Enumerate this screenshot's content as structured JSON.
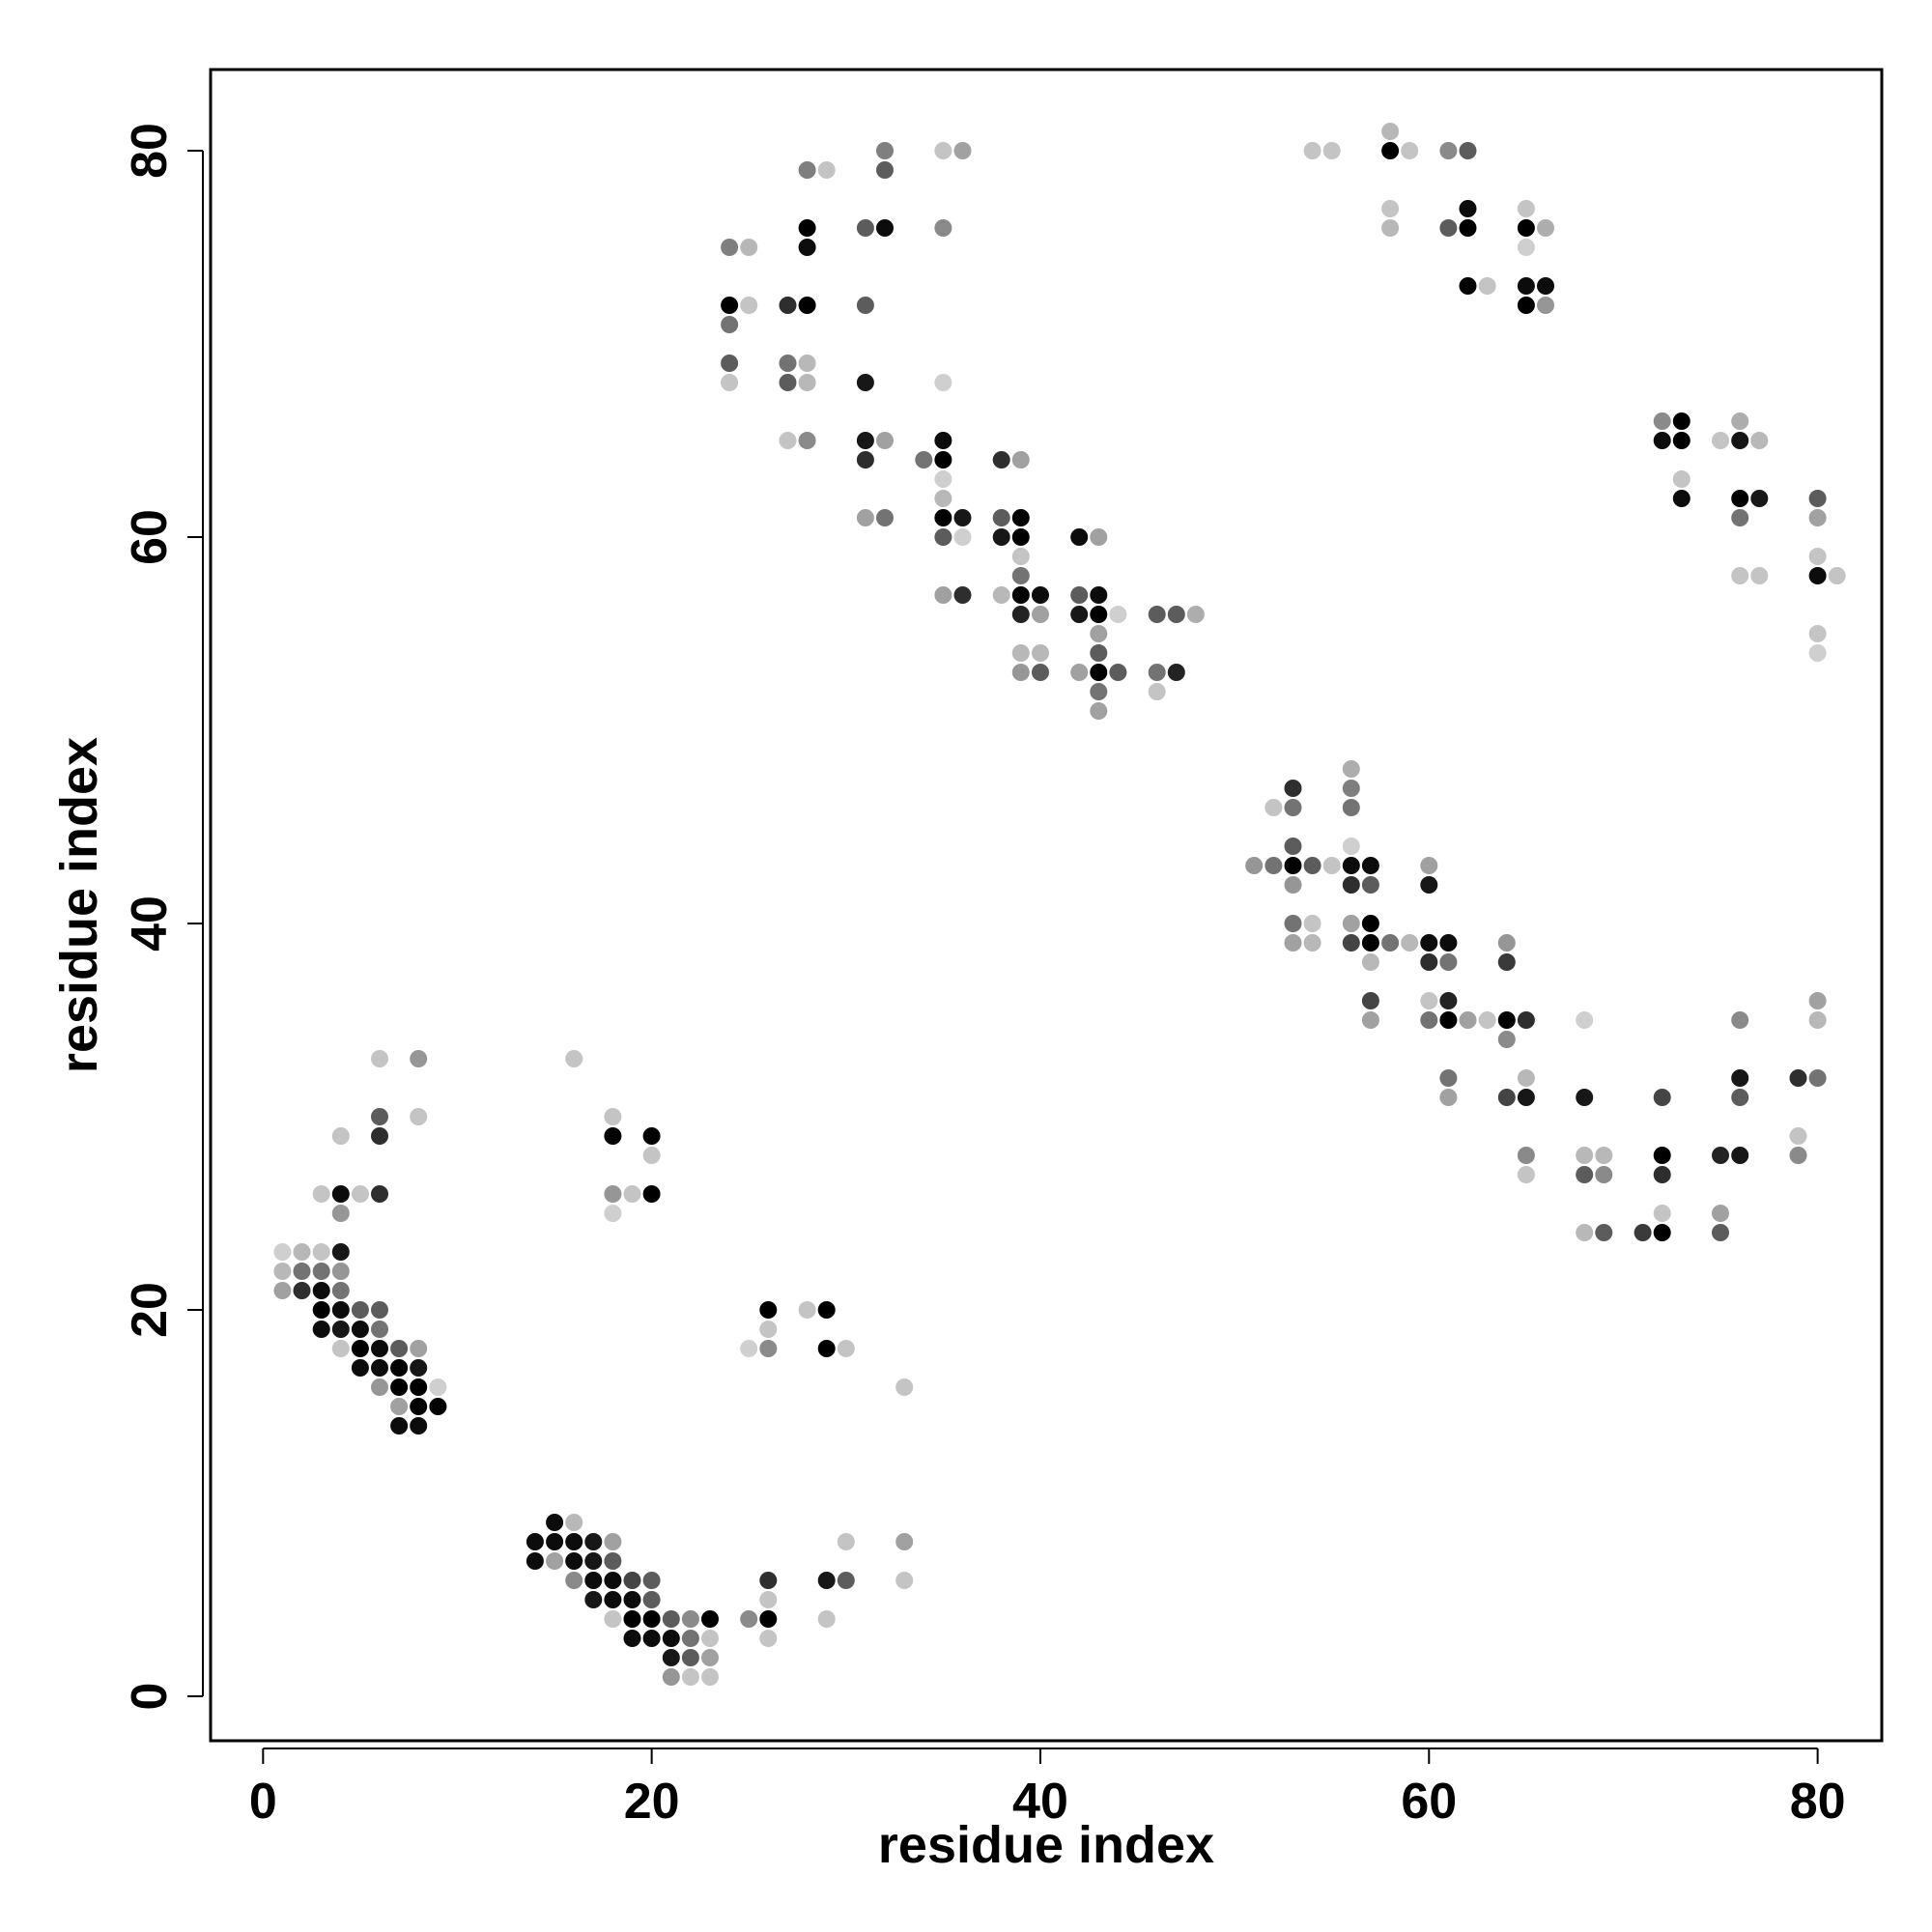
{
  "chart_data": {
    "type": "scatter",
    "title": "",
    "xlabel": "residue index",
    "ylabel": "residue index",
    "xlim": [
      -2.7,
      83.3
    ],
    "ylim": [
      -2.3,
      84.2
    ],
    "x_ticks": [
      0,
      20,
      40,
      60,
      80
    ],
    "y_ticks": [
      0,
      20,
      40,
      60,
      80
    ],
    "grid": false,
    "legend": "none",
    "point_color_scale": "grayscale: 0 = light gray, 1 = black",
    "points": [
      [
        1,
        23,
        0.1
      ],
      [
        2,
        23,
        0.2
      ],
      [
        3,
        23,
        0.15
      ],
      [
        1,
        22,
        0.2
      ],
      [
        2,
        22,
        0.5
      ],
      [
        3,
        22,
        0.5
      ],
      [
        4,
        22,
        0.35
      ],
      [
        1,
        21,
        0.3
      ],
      [
        2,
        21,
        0.8
      ],
      [
        3,
        21,
        0.95
      ],
      [
        4,
        21,
        0.5
      ],
      [
        4,
        23,
        0.9
      ],
      [
        3,
        20,
        1.0
      ],
      [
        4,
        20,
        0.95
      ],
      [
        5,
        20,
        0.6
      ],
      [
        6,
        20,
        0.6
      ],
      [
        3,
        19,
        0.95
      ],
      [
        4,
        19,
        0.9
      ],
      [
        5,
        19,
        0.95
      ],
      [
        6,
        19,
        0.5
      ],
      [
        4,
        18,
        0.15
      ],
      [
        5,
        18,
        1.0
      ],
      [
        6,
        18,
        0.95
      ],
      [
        7,
        18,
        0.6
      ],
      [
        8,
        18,
        0.3
      ],
      [
        5,
        17,
        0.95
      ],
      [
        6,
        17,
        0.95
      ],
      [
        7,
        17,
        1.0
      ],
      [
        8,
        17,
        0.9
      ],
      [
        6,
        16,
        0.35
      ],
      [
        7,
        16,
        1.0
      ],
      [
        8,
        16,
        1.0
      ],
      [
        9,
        16,
        0.1
      ],
      [
        7,
        15,
        0.3
      ],
      [
        8,
        15,
        1.0
      ],
      [
        9,
        15,
        1.0
      ],
      [
        7,
        14,
        0.95
      ],
      [
        8,
        14,
        0.95
      ],
      [
        3,
        26,
        0.15
      ],
      [
        4,
        26,
        0.95
      ],
      [
        5,
        26,
        0.15
      ],
      [
        4,
        25,
        0.35
      ],
      [
        6,
        26,
        0.8
      ],
      [
        4,
        29,
        0.15
      ],
      [
        6,
        30,
        0.6
      ],
      [
        6,
        29,
        0.8
      ],
      [
        6,
        33,
        0.15
      ],
      [
        8,
        33,
        0.35
      ],
      [
        8,
        30,
        0.15
      ],
      [
        16,
        33,
        0.15
      ],
      [
        18,
        30,
        0.15
      ],
      [
        18,
        29,
        1.0
      ],
      [
        20,
        29,
        1.0
      ],
      [
        20,
        28,
        0.15
      ],
      [
        18,
        26,
        0.35
      ],
      [
        19,
        26,
        0.15
      ],
      [
        20,
        26,
        1.0
      ],
      [
        18,
        25,
        0.1
      ],
      [
        26,
        20,
        1.0
      ],
      [
        26,
        19,
        0.15
      ],
      [
        25,
        18,
        0.1
      ],
      [
        26,
        18,
        0.4
      ],
      [
        28,
        20,
        0.15
      ],
      [
        29,
        20,
        1.0
      ],
      [
        29,
        18,
        1.0
      ],
      [
        30,
        18,
        0.15
      ],
      [
        33,
        16,
        0.15
      ],
      [
        14,
        8,
        0.95
      ],
      [
        15,
        8,
        0.95
      ],
      [
        16,
        8,
        0.95
      ],
      [
        17,
        8,
        0.9
      ],
      [
        18,
        8,
        0.3
      ],
      [
        15,
        9,
        0.95
      ],
      [
        16,
        9,
        0.2
      ],
      [
        14,
        7,
        0.95
      ],
      [
        15,
        7,
        0.3
      ],
      [
        16,
        7,
        0.95
      ],
      [
        17,
        7,
        0.9
      ],
      [
        18,
        7,
        0.6
      ],
      [
        16,
        6,
        0.4
      ],
      [
        17,
        6,
        0.95
      ],
      [
        18,
        6,
        0.95
      ],
      [
        19,
        6,
        0.7
      ],
      [
        20,
        6,
        0.6
      ],
      [
        17,
        5,
        0.9
      ],
      [
        18,
        5,
        0.95
      ],
      [
        19,
        5,
        0.95
      ],
      [
        20,
        5,
        0.6
      ],
      [
        18,
        4,
        0.15
      ],
      [
        19,
        4,
        1.0
      ],
      [
        20,
        4,
        1.0
      ],
      [
        21,
        4,
        0.6
      ],
      [
        22,
        4,
        0.4
      ],
      [
        23,
        4,
        1.0
      ],
      [
        19,
        3,
        0.95
      ],
      [
        20,
        3,
        0.95
      ],
      [
        21,
        3,
        0.95
      ],
      [
        22,
        3,
        0.5
      ],
      [
        23,
        3,
        0.15
      ],
      [
        21,
        2,
        0.9
      ],
      [
        22,
        2,
        0.6
      ],
      [
        23,
        2,
        0.3
      ],
      [
        21,
        1,
        0.35
      ],
      [
        22,
        1,
        0.15
      ],
      [
        23,
        1,
        0.15
      ],
      [
        25,
        4,
        0.4
      ],
      [
        26,
        4,
        1.0
      ],
      [
        26,
        5,
        0.15
      ],
      [
        26,
        6,
        0.8
      ],
      [
        26,
        3,
        0.15
      ],
      [
        29,
        4,
        0.15
      ],
      [
        29,
        6,
        0.9
      ],
      [
        30,
        6,
        0.6
      ],
      [
        30,
        8,
        0.15
      ],
      [
        33,
        8,
        0.3
      ],
      [
        33,
        6,
        0.15
      ],
      [
        24,
        75,
        0.45
      ],
      [
        25,
        75,
        0.2
      ],
      [
        24,
        72,
        1.0
      ],
      [
        25,
        72,
        0.15
      ],
      [
        24,
        71,
        0.5
      ],
      [
        24,
        69,
        0.6
      ],
      [
        24,
        68,
        0.15
      ],
      [
        28,
        79,
        0.45
      ],
      [
        29,
        79,
        0.15
      ],
      [
        28,
        76,
        1.0
      ],
      [
        28,
        75,
        0.95
      ],
      [
        27,
        72,
        0.8
      ],
      [
        28,
        72,
        1.0
      ],
      [
        27,
        69,
        0.5
      ],
      [
        28,
        69,
        0.2
      ],
      [
        27,
        68,
        0.6
      ],
      [
        28,
        68,
        0.2
      ],
      [
        27,
        65,
        0.15
      ],
      [
        28,
        65,
        0.4
      ],
      [
        32,
        80,
        0.45
      ],
      [
        32,
        79,
        0.6
      ],
      [
        31,
        76,
        0.6
      ],
      [
        32,
        76,
        0.95
      ],
      [
        31,
        72,
        0.6
      ],
      [
        31,
        68,
        0.9
      ],
      [
        31,
        65,
        0.9
      ],
      [
        32,
        65,
        0.3
      ],
      [
        31,
        64,
        0.8
      ],
      [
        31,
        61,
        0.3
      ],
      [
        32,
        61,
        0.5
      ],
      [
        35,
        80,
        0.15
      ],
      [
        36,
        80,
        0.3
      ],
      [
        35,
        76,
        0.4
      ],
      [
        35,
        68,
        0.1
      ],
      [
        34,
        64,
        0.5
      ],
      [
        35,
        65,
        0.95
      ],
      [
        35,
        64,
        1.0
      ],
      [
        35,
        63,
        0.1
      ],
      [
        35,
        62,
        0.2
      ],
      [
        35,
        61,
        1.0
      ],
      [
        36,
        61,
        0.9
      ],
      [
        35,
        60,
        0.6
      ],
      [
        36,
        60,
        0.1
      ],
      [
        35,
        57,
        0.3
      ],
      [
        36,
        57,
        0.8
      ],
      [
        38,
        64,
        0.8
      ],
      [
        39,
        64,
        0.3
      ],
      [
        38,
        61,
        0.6
      ],
      [
        39,
        61,
        1.0
      ],
      [
        38,
        60,
        0.9
      ],
      [
        39,
        60,
        1.0
      ],
      [
        39,
        59,
        0.15
      ],
      [
        39,
        58,
        0.5
      ],
      [
        38,
        57,
        0.2
      ],
      [
        39,
        57,
        1.0
      ],
      [
        40,
        57,
        0.95
      ],
      [
        39,
        56,
        0.85
      ],
      [
        40,
        56,
        0.3
      ],
      [
        39,
        54,
        0.2
      ],
      [
        40,
        54,
        0.2
      ],
      [
        39,
        53,
        0.35
      ],
      [
        40,
        53,
        0.6
      ],
      [
        42,
        60,
        0.95
      ],
      [
        43,
        60,
        0.3
      ],
      [
        42,
        57,
        0.6
      ],
      [
        43,
        57,
        0.95
      ],
      [
        42,
        56,
        0.9
      ],
      [
        43,
        56,
        1.0
      ],
      [
        44,
        56,
        0.1
      ],
      [
        43,
        55,
        0.3
      ],
      [
        43,
        54,
        0.6
      ],
      [
        42,
        53,
        0.3
      ],
      [
        43,
        53,
        1.0
      ],
      [
        44,
        53,
        0.6
      ],
      [
        43,
        52,
        0.5
      ],
      [
        43,
        51,
        0.3
      ],
      [
        46,
        56,
        0.6
      ],
      [
        47,
        56,
        0.6
      ],
      [
        48,
        56,
        0.25
      ],
      [
        46,
        53,
        0.5
      ],
      [
        47,
        53,
        0.85
      ],
      [
        46,
        52,
        0.15
      ],
      [
        51,
        43,
        0.35
      ],
      [
        52,
        43,
        0.5
      ],
      [
        53,
        43,
        1.0
      ],
      [
        54,
        43,
        0.6
      ],
      [
        55,
        43,
        0.15
      ],
      [
        53,
        44,
        0.6
      ],
      [
        52,
        46,
        0.15
      ],
      [
        53,
        46,
        0.5
      ],
      [
        53,
        47,
        0.8
      ],
      [
        53,
        42,
        0.35
      ],
      [
        53,
        40,
        0.5
      ],
      [
        54,
        40,
        0.15
      ],
      [
        53,
        39,
        0.3
      ],
      [
        54,
        39,
        0.2
      ],
      [
        56,
        48,
        0.25
      ],
      [
        56,
        47,
        0.45
      ],
      [
        56,
        46,
        0.5
      ],
      [
        56,
        44,
        0.1
      ],
      [
        56,
        43,
        0.95
      ],
      [
        57,
        43,
        0.95
      ],
      [
        56,
        42,
        0.8
      ],
      [
        57,
        42,
        0.6
      ],
      [
        56,
        40,
        0.3
      ],
      [
        57,
        40,
        1.0
      ],
      [
        56,
        39,
        0.7
      ],
      [
        57,
        39,
        1.0
      ],
      [
        58,
        39,
        0.5
      ],
      [
        59,
        39,
        0.2
      ],
      [
        57,
        38,
        0.2
      ],
      [
        57,
        36,
        0.7
      ],
      [
        57,
        35,
        0.3
      ],
      [
        60,
        43,
        0.3
      ],
      [
        60,
        42,
        0.9
      ],
      [
        60,
        39,
        0.95
      ],
      [
        61,
        39,
        0.95
      ],
      [
        60,
        38,
        0.8
      ],
      [
        61,
        38,
        0.5
      ],
      [
        60,
        36,
        0.15
      ],
      [
        61,
        36,
        0.85
      ],
      [
        60,
        35,
        0.5
      ],
      [
        61,
        35,
        1.0
      ],
      [
        62,
        35,
        0.3
      ],
      [
        63,
        35,
        0.15
      ],
      [
        61,
        32,
        0.5
      ],
      [
        61,
        31,
        0.3
      ],
      [
        64,
        39,
        0.35
      ],
      [
        64,
        38,
        0.75
      ],
      [
        64,
        35,
        1.0
      ],
      [
        65,
        35,
        0.8
      ],
      [
        64,
        34,
        0.4
      ],
      [
        64,
        31,
        0.7
      ],
      [
        65,
        31,
        0.9
      ],
      [
        65,
        32,
        0.2
      ],
      [
        65,
        28,
        0.4
      ],
      [
        65,
        27,
        0.15
      ],
      [
        68,
        35,
        0.1
      ],
      [
        68,
        31,
        0.9
      ],
      [
        68,
        28,
        0.2
      ],
      [
        69,
        28,
        0.2
      ],
      [
        68,
        27,
        0.6
      ],
      [
        69,
        27,
        0.4
      ],
      [
        68,
        24,
        0.2
      ],
      [
        69,
        24,
        0.6
      ],
      [
        72,
        31,
        0.7
      ],
      [
        72,
        28,
        1.0
      ],
      [
        72,
        27,
        0.8
      ],
      [
        72,
        25,
        0.15
      ],
      [
        71,
        24,
        0.75
      ],
      [
        72,
        24,
        1.0
      ],
      [
        75,
        28,
        0.85
      ],
      [
        76,
        28,
        0.9
      ],
      [
        75,
        25,
        0.3
      ],
      [
        75,
        24,
        0.6
      ],
      [
        76,
        35,
        0.4
      ],
      [
        76,
        32,
        0.9
      ],
      [
        76,
        31,
        0.6
      ],
      [
        79,
        32,
        0.8
      ],
      [
        80,
        32,
        0.5
      ],
      [
        80,
        36,
        0.3
      ],
      [
        80,
        35,
        0.2
      ],
      [
        79,
        29,
        0.15
      ],
      [
        79,
        28,
        0.4
      ],
      [
        54,
        80,
        0.15
      ],
      [
        55,
        80,
        0.15
      ],
      [
        58,
        81,
        0.2
      ],
      [
        58,
        80,
        1.0
      ],
      [
        59,
        80,
        0.15
      ],
      [
        58,
        77,
        0.15
      ],
      [
        58,
        76,
        0.2
      ],
      [
        61,
        80,
        0.4
      ],
      [
        62,
        80,
        0.6
      ],
      [
        62,
        77,
        0.95
      ],
      [
        61,
        76,
        0.6
      ],
      [
        62,
        76,
        1.0
      ],
      [
        62,
        73,
        1.0
      ],
      [
        63,
        73,
        0.15
      ],
      [
        65,
        77,
        0.15
      ],
      [
        65,
        76,
        1.0
      ],
      [
        66,
        76,
        0.25
      ],
      [
        65,
        75,
        0.1
      ],
      [
        65,
        73,
        0.95
      ],
      [
        66,
        73,
        0.95
      ],
      [
        65,
        72,
        1.0
      ],
      [
        66,
        72,
        0.35
      ],
      [
        72,
        66,
        0.4
      ],
      [
        73,
        66,
        1.0
      ],
      [
        72,
        65,
        0.95
      ],
      [
        73,
        65,
        1.0
      ],
      [
        73,
        63,
        0.15
      ],
      [
        73,
        62,
        0.95
      ],
      [
        75,
        65,
        0.15
      ],
      [
        76,
        66,
        0.25
      ],
      [
        76,
        65,
        0.9
      ],
      [
        77,
        65,
        0.2
      ],
      [
        76,
        62,
        1.0
      ],
      [
        77,
        62,
        0.9
      ],
      [
        76,
        61,
        0.5
      ],
      [
        76,
        58,
        0.15
      ],
      [
        77,
        58,
        0.15
      ],
      [
        80,
        62,
        0.6
      ],
      [
        80,
        61,
        0.3
      ],
      [
        80,
        59,
        0.15
      ],
      [
        80,
        58,
        0.95
      ],
      [
        81,
        58,
        0.15
      ],
      [
        80,
        55,
        0.15
      ],
      [
        80,
        54,
        0.1
      ]
    ]
  }
}
